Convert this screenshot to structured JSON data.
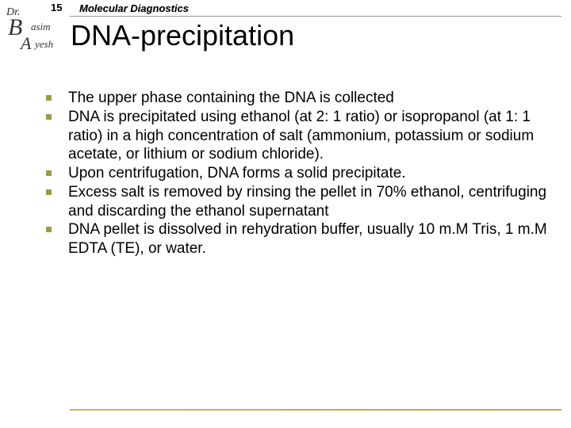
{
  "header": {
    "page_number": "15",
    "course_title": "Molecular Diagnostics",
    "logo": {
      "dr": "Dr.",
      "b": "B",
      "asim": "asim",
      "a2": "A",
      "yesh": "yesh"
    }
  },
  "title": "DNA-precipitation",
  "bullets": [
    "The upper phase containing the DNA is collected",
    "DNA is precipitated using ethanol (at 2: 1 ratio) or isopropanol (at 1: 1 ratio) in a high concentration of salt (ammonium, potassium or sodium acetate, or lithium or sodium chloride).",
    "Upon centrifugation, DNA forms a solid precipitate.",
    "Excess salt is removed by rinsing the pellet in 70% ethanol, centrifuging and discarding the ethanol supernatant",
    "DNA pellet is dissolved in rehydration buffer, usually 10 m.M Tris, 1 m.M EDTA (TE), or water."
  ],
  "colors": {
    "bullet_marker": "#9a9a4d",
    "bottom_rule": "#c2b84d",
    "top_rule": "#999999",
    "text": "#000000",
    "background": "#ffffff"
  }
}
